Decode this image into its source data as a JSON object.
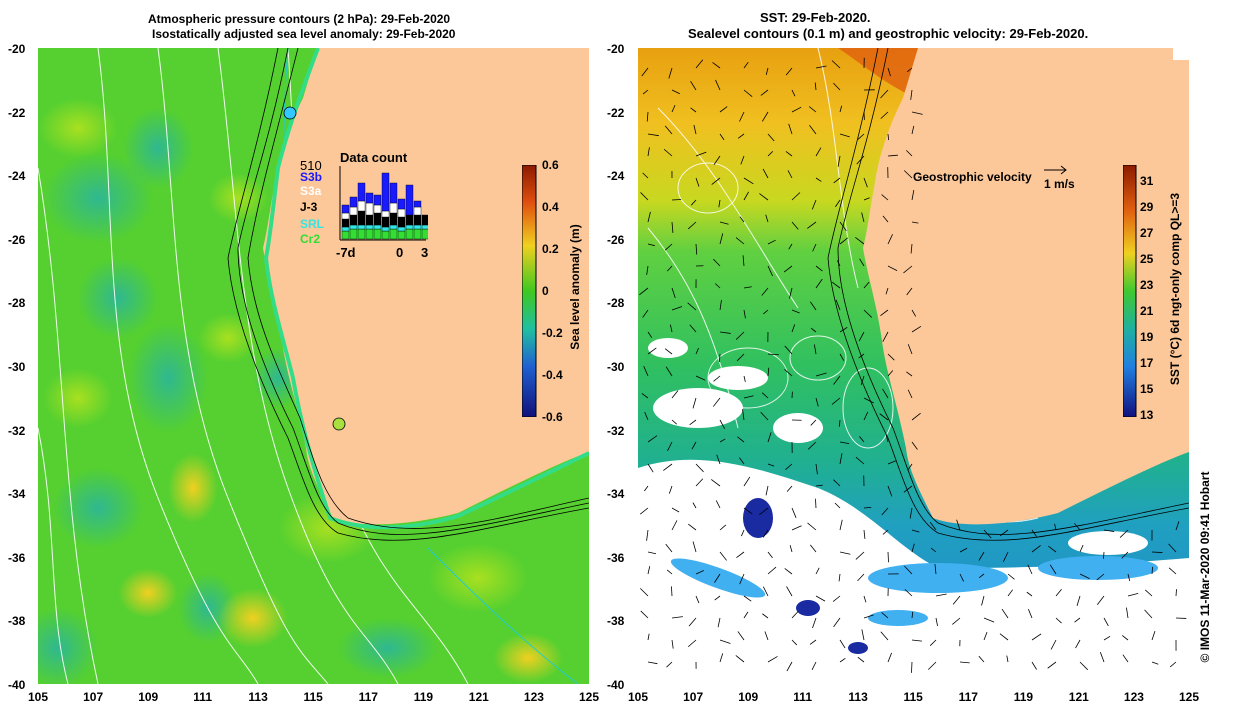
{
  "left_panel": {
    "title_line1": "Atmospheric pressure contours (2 hPa): 29-Feb-2020",
    "title_line2": "Isostatically adjusted sea level anomaly: 29-Feb-2020",
    "colorbar": {
      "label": "Sea level anomaly (m)",
      "ticks": [
        "0.6",
        "0.4",
        "0.2",
        "0",
        "-0.2",
        "-0.4",
        "-0.6"
      ],
      "range": [
        -0.6,
        0.6
      ]
    },
    "data_count": {
      "title": "Data count",
      "max_label": "510",
      "satellites": [
        {
          "name": "S3b",
          "color": "#1a1aff"
        },
        {
          "name": "S3a",
          "color": "#ffffff"
        },
        {
          "name": "J-3",
          "color": "#000000"
        },
        {
          "name": "SRL",
          "color": "#33e6e6"
        },
        {
          "name": "Cr2",
          "color": "#33dd33"
        }
      ],
      "xaxis": [
        "-7d",
        "0",
        "3"
      ]
    }
  },
  "right_panel": {
    "title_line1": "SST: 29-Feb-2020.",
    "title_line2": "Sealevel contours (0.1 m) and geostrophic velocity: 29-Feb-2020.",
    "velocity_legend": "Geostrophic velocity",
    "velocity_scale": "1 m/s",
    "colorbar": {
      "label": "SST (°C) 6d ngt-only comp QL>=3",
      "ticks": [
        "31",
        "29",
        "27",
        "25",
        "23",
        "21",
        "19",
        "17",
        "15",
        "13"
      ],
      "range": [
        13,
        32
      ]
    }
  },
  "axes": {
    "lat_ticks": [
      "-20",
      "-22",
      "-24",
      "-26",
      "-28",
      "-30",
      "-32",
      "-34",
      "-36",
      "-38",
      "-40"
    ],
    "lon_ticks": [
      "105",
      "107",
      "109",
      "111",
      "113",
      "115",
      "117",
      "119",
      "121",
      "123",
      "125"
    ]
  },
  "credit": "© IMOS 11-Mar-2020 09:41 Hobart",
  "colors": {
    "land": "#fcc89a",
    "ocean_left": "#4cd42a",
    "sst_warm": "#e07010",
    "sst_cool": "#20a0e0"
  }
}
